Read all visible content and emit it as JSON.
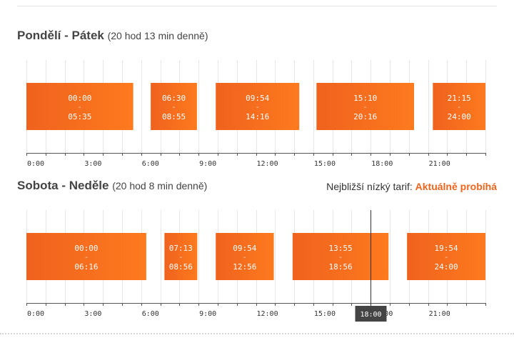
{
  "weekday": {
    "title": "Pondělí - Pátek",
    "subtitle": "(20 hod 13 min denně)"
  },
  "weekend": {
    "title": "Sobota - Neděle",
    "subtitle": "(20 hod 8 min denně)"
  },
  "tariff_note": {
    "label": "Nejbližší nízký tarif:",
    "status": "Aktuálně probíhá"
  },
  "colors": {
    "interval_dark": "#f0621e",
    "interval_light": "#fd7a1e",
    "grid": "#e6e6e6",
    "axis": "#555555",
    "cursor": "#333333",
    "cursor_label_bg": "#444444"
  },
  "chart_data": [
    {
      "type": "bar",
      "orientation": "timeline",
      "title": "Pondělí - Pátek",
      "subtitle": "(20 hod 13 min denně)",
      "x_range_hours": [
        0,
        24
      ],
      "tick_labels": [
        "0:00",
        "3:00",
        "6:00",
        "9:00",
        "12:00",
        "15:00",
        "18:00",
        "21:00"
      ],
      "grid": true,
      "intervals": [
        {
          "start": "00:00",
          "end": "05:35",
          "separator": "-"
        },
        {
          "start": "06:30",
          "end": "08:55",
          "separator": "-"
        },
        {
          "start": "09:54",
          "end": "14:16",
          "separator": "-"
        },
        {
          "start": "15:10",
          "end": "20:16",
          "separator": "-"
        },
        {
          "start": "21:15",
          "end": "24:00",
          "separator": "-"
        }
      ]
    },
    {
      "type": "bar",
      "orientation": "timeline",
      "title": "Sobota - Neděle",
      "subtitle": "(20 hod 8 min denně)",
      "x_range_hours": [
        0,
        24
      ],
      "tick_labels": [
        "0:00",
        "3:00",
        "6:00",
        "9:00",
        "12:00",
        "15:00",
        "18:00",
        "21:00"
      ],
      "grid": true,
      "intervals": [
        {
          "start": "00:00",
          "end": "06:16",
          "separator": "-"
        },
        {
          "start": "07:13",
          "end": "08:56",
          "separator": "-"
        },
        {
          "start": "09:54",
          "end": "12:56",
          "separator": "-"
        },
        {
          "start": "13:55",
          "end": "18:56",
          "separator": "-"
        },
        {
          "start": "19:54",
          "end": "24:00",
          "separator": "-"
        }
      ],
      "cursor": {
        "time": "18:00",
        "label": "18:00"
      }
    }
  ]
}
